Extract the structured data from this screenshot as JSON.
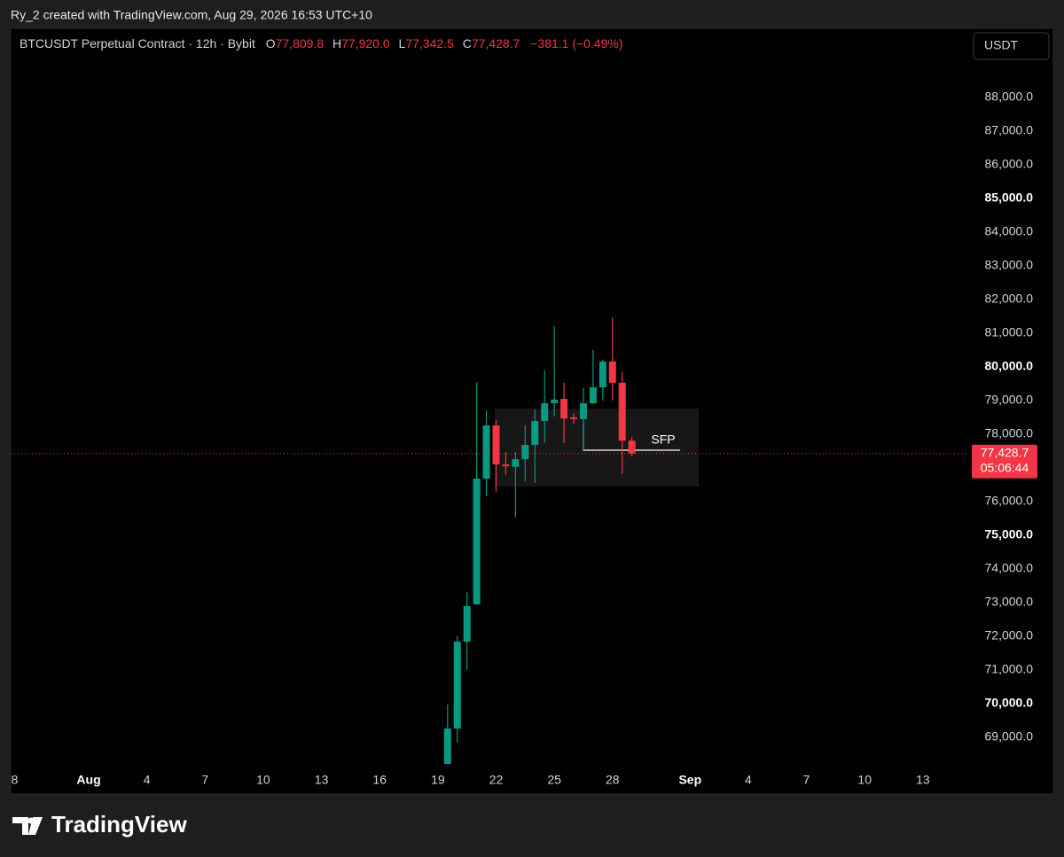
{
  "header": {
    "credit": "Ry_2 created with TradingView.com, Aug 29, 2026 16:53 UTC+10"
  },
  "chart_data": {
    "type": "candlestick",
    "title": "BTCUSDT Perpetual Contract · 12h · Bybit",
    "legend": [
      {
        "label": "O",
        "value": "77,809.8"
      },
      {
        "label": "H",
        "value": "77,920.0"
      },
      {
        "label": "L",
        "value": "77,342.5"
      },
      {
        "label": "C",
        "value": "77,428.7"
      }
    ],
    "change": "−381.1 (−0.49%)",
    "currency": "USDT",
    "categories": [
      "8",
      null,
      null,
      null,
      null,
      null,
      null,
      null,
      "Aug",
      null,
      null,
      null,
      null,
      null,
      "4",
      null,
      null,
      null,
      null,
      null,
      "7",
      null,
      null,
      null,
      null,
      null,
      "10",
      null,
      null,
      null,
      null,
      null,
      "13",
      null,
      null,
      null,
      null,
      null,
      "16",
      null,
      null,
      null,
      null,
      null,
      "19",
      null,
      null,
      null,
      null,
      null,
      "22",
      null,
      null,
      null,
      null,
      null,
      "25",
      null,
      null,
      null,
      null,
      null,
      "28",
      null,
      null,
      null,
      null,
      null,
      null,
      null,
      "Sep",
      null,
      null,
      null,
      null,
      null,
      "4",
      null,
      null,
      null,
      null,
      null,
      "7",
      null,
      null,
      null,
      null,
      null,
      "10",
      null,
      null,
      null,
      null,
      null,
      "13",
      null,
      null,
      null,
      null
    ],
    "open": [
      null,
      null,
      null,
      null,
      null,
      null,
      null,
      null,
      null,
      null,
      null,
      null,
      null,
      null,
      null,
      null,
      null,
      null,
      null,
      null,
      null,
      null,
      null,
      null,
      null,
      null,
      null,
      null,
      null,
      null,
      null,
      null,
      null,
      null,
      null,
      null,
      null,
      null,
      null,
      null,
      null,
      null,
      null,
      null,
      null,
      68211,
      69263,
      71842,
      72950,
      76684,
      78263,
      77105,
      77030,
      77260,
      77684,
      78395,
      78921,
      79050,
      78500,
      78450,
      78921,
      79395,
      80158,
      79530,
      77809.8,
      null,
      null,
      null,
      null,
      null,
      null,
      null,
      null,
      null,
      null,
      null,
      null,
      null,
      null,
      null,
      null,
      null,
      null,
      null,
      null,
      null,
      null,
      null,
      null,
      null,
      null,
      null,
      null,
      null,
      null,
      null,
      null,
      null,
      null
    ],
    "high": [
      null,
      null,
      null,
      null,
      null,
      null,
      null,
      null,
      null,
      null,
      null,
      null,
      null,
      null,
      null,
      null,
      null,
      null,
      null,
      null,
      null,
      null,
      null,
      null,
      null,
      null,
      null,
      null,
      null,
      null,
      null,
      null,
      null,
      null,
      null,
      null,
      null,
      null,
      null,
      null,
      null,
      null,
      null,
      null,
      null,
      69974,
      72000,
      73316,
      79526,
      78710,
      78420,
      77470,
      77470,
      78260,
      78740,
      79900,
      81210,
      79530,
      78630,
      79370,
      80500,
      80210,
      81470,
      79840,
      77920,
      null,
      null,
      null,
      null,
      null,
      null,
      null,
      null,
      null,
      null,
      null,
      null,
      null,
      null,
      null,
      null,
      null,
      null,
      null,
      null,
      null,
      null,
      null,
      null,
      null,
      null,
      null,
      null,
      null,
      null,
      null,
      null,
      null,
      null
    ],
    "low": [
      null,
      null,
      null,
      null,
      null,
      null,
      null,
      null,
      null,
      null,
      null,
      null,
      null,
      null,
      null,
      null,
      null,
      null,
      null,
      null,
      null,
      null,
      null,
      null,
      null,
      null,
      null,
      null,
      null,
      null,
      null,
      null,
      null,
      null,
      null,
      null,
      null,
      null,
      null,
      null,
      null,
      null,
      null,
      null,
      null,
      68200,
      68842,
      71000,
      72950,
      76158,
      76290,
      76800,
      75530,
      76600,
      76550,
      77740,
      78530,
      77740,
      78320,
      77530,
      78900,
      79000,
      79000,
      76820,
      77342.5,
      null,
      null,
      null,
      null,
      null,
      null,
      null,
      null,
      null,
      null,
      null,
      null,
      null,
      null,
      null,
      null,
      null,
      null,
      null,
      null,
      null,
      null,
      null,
      null,
      null,
      null,
      null,
      null,
      null,
      null,
      null,
      null,
      null,
      null
    ],
    "close": [
      null,
      null,
      null,
      null,
      null,
      null,
      null,
      null,
      null,
      null,
      null,
      null,
      null,
      null,
      null,
      null,
      null,
      null,
      null,
      null,
      null,
      null,
      null,
      null,
      null,
      null,
      null,
      null,
      null,
      null,
      null,
      null,
      null,
      null,
      null,
      null,
      null,
      null,
      null,
      null,
      null,
      null,
      null,
      null,
      null,
      69263,
      71842,
      72895,
      76684,
      78263,
      77105,
      77050,
      77260,
      77684,
      78395,
      78921,
      79030,
      78470,
      78450,
      78921,
      79395,
      80158,
      79530,
      77809.8,
      77428.7,
      null,
      null,
      null,
      null,
      null,
      null,
      null,
      null,
      null,
      null,
      null,
      null,
      null,
      null,
      null,
      null,
      null,
      null,
      null,
      null,
      null,
      null,
      null,
      null,
      null,
      null,
      null,
      null,
      null,
      null,
      null,
      null,
      null,
      null
    ],
    "up_color": "#089981",
    "down_color": "#f23645",
    "ylim": [
      68053,
      90053
    ],
    "yticks": [
      {
        "value": 69000,
        "label": "69,000.0"
      },
      {
        "value": 70000,
        "label": "70,000.0"
      },
      {
        "value": 71000,
        "label": "71,000.0"
      },
      {
        "value": 72000,
        "label": "72,000.0"
      },
      {
        "value": 73000,
        "label": "73,000.0"
      },
      {
        "value": 74000,
        "label": "74,000.0"
      },
      {
        "value": 75000,
        "label": "75,000.0"
      },
      {
        "value": 76000,
        "label": "76,000.0"
      },
      {
        "value": 78000,
        "label": "78,000.0"
      },
      {
        "value": 79000,
        "label": "79,000.0"
      },
      {
        "value": 80000,
        "label": "80,000.0"
      },
      {
        "value": 81000,
        "label": "81,000.0"
      },
      {
        "value": 82000,
        "label": "82,000.0"
      },
      {
        "value": 83000,
        "label": "83,000.0"
      },
      {
        "value": 84000,
        "label": "84,000.0"
      },
      {
        "value": 85000,
        "label": "85,000.0"
      },
      {
        "value": 86000,
        "label": "86,000.0"
      },
      {
        "value": 87000,
        "label": "87,000.0"
      },
      {
        "value": 88000,
        "label": "88,000.0"
      }
    ],
    "grid": false,
    "last_price": {
      "value": 77428.7,
      "label": "77,428.7"
    },
    "countdown": "05:06:44",
    "annotation": "SFP"
  },
  "footer": {
    "brand": "TradingView"
  }
}
